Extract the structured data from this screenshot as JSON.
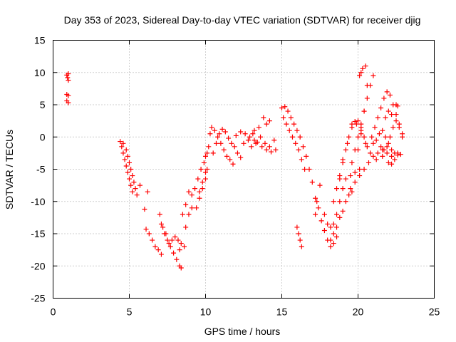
{
  "chart_data": {
    "type": "scatter",
    "title": "Day 353 of 2023, Sidereal Day-to-day VTEC variation (SDTVAR) for receiver djig",
    "xlabel": "GPS time / hours",
    "ylabel": "SDTVAR / TECUs",
    "xlim": [
      0,
      25
    ],
    "ylim": [
      -25,
      15
    ],
    "xticks": [
      "0",
      "5",
      "10",
      "15",
      "20",
      "25"
    ],
    "yticks": [
      "15",
      "10",
      "5",
      "0",
      "-5",
      "-10",
      "-15",
      "-20",
      "-25"
    ],
    "grid": true,
    "marker": "plus",
    "color": "#ff0000",
    "series": [
      {
        "values": [
          [
            0.9,
            9.6
          ],
          [
            0.95,
            9.2
          ],
          [
            1.0,
            8.8
          ],
          [
            1.0,
            9.8
          ],
          [
            0.9,
            6.6
          ],
          [
            1.0,
            6.4
          ],
          [
            0.9,
            5.6
          ],
          [
            1.0,
            5.3
          ],
          [
            4.4,
            -0.7
          ],
          [
            4.5,
            -1.5
          ],
          [
            4.6,
            -2.5
          ],
          [
            4.7,
            -3.5
          ],
          [
            4.8,
            -4.5
          ],
          [
            4.9,
            -5.5
          ],
          [
            5.0,
            -6.5
          ],
          [
            5.1,
            -7.5
          ],
          [
            5.2,
            -8.5
          ],
          [
            4.6,
            -1.0
          ],
          [
            4.8,
            -2.0
          ],
          [
            4.9,
            -3.0
          ],
          [
            5.0,
            -4.0
          ],
          [
            5.1,
            -5.0
          ],
          [
            5.2,
            -6.0
          ],
          [
            5.3,
            -7.0
          ],
          [
            5.4,
            -8.0
          ],
          [
            5.5,
            -9.0
          ],
          [
            5.7,
            -7.5
          ],
          [
            6.0,
            -11.2
          ],
          [
            6.2,
            -8.5
          ],
          [
            6.1,
            -14.3
          ],
          [
            6.3,
            -15.0
          ],
          [
            6.5,
            -16.0
          ],
          [
            6.7,
            -17.0
          ],
          [
            6.9,
            -17.5
          ],
          [
            7.1,
            -18.2
          ],
          [
            7.0,
            -12.0
          ],
          [
            7.1,
            -13.5
          ],
          [
            7.3,
            -15.0
          ],
          [
            7.5,
            -16.0
          ],
          [
            7.7,
            -17.0
          ],
          [
            7.9,
            -18.0
          ],
          [
            8.1,
            -19.0
          ],
          [
            8.3,
            -20.0
          ],
          [
            8.4,
            -20.3
          ],
          [
            7.2,
            -14.0
          ],
          [
            7.4,
            -15.0
          ],
          [
            7.6,
            -16.5
          ],
          [
            7.8,
            -16.0
          ],
          [
            8.0,
            -15.5
          ],
          [
            8.2,
            -16.0
          ],
          [
            8.4,
            -16.5
          ],
          [
            8.6,
            -17.0
          ],
          [
            8.3,
            -17.5
          ],
          [
            8.5,
            -12.0
          ],
          [
            8.7,
            -10.5
          ],
          [
            8.9,
            -8.5
          ],
          [
            9.1,
            -9.0
          ],
          [
            8.7,
            -14.0
          ],
          [
            8.9,
            -12.0
          ],
          [
            9.1,
            -11.0
          ],
          [
            9.3,
            -8.0
          ],
          [
            9.5,
            -6.5
          ],
          [
            9.7,
            -5.0
          ],
          [
            9.9,
            -4.0
          ],
          [
            10.0,
            -3.0
          ],
          [
            10.1,
            -2.5
          ],
          [
            9.4,
            -11.0
          ],
          [
            9.6,
            -9.5
          ],
          [
            9.8,
            -8.0
          ],
          [
            10.0,
            -6.5
          ],
          [
            10.1,
            -5.0
          ],
          [
            9.6,
            -8.5
          ],
          [
            9.8,
            -7.0
          ],
          [
            10.0,
            -5.5
          ],
          [
            10.2,
            -1.5
          ],
          [
            10.3,
            0.5
          ],
          [
            10.4,
            1.5
          ],
          [
            10.6,
            1.0
          ],
          [
            10.8,
            0.0
          ],
          [
            11.0,
            -1.0
          ],
          [
            11.2,
            -2.0
          ],
          [
            11.4,
            -3.0
          ],
          [
            11.6,
            -3.5
          ],
          [
            11.8,
            -4.2
          ],
          [
            10.5,
            -2.5
          ],
          [
            10.7,
            -1.0
          ],
          [
            10.9,
            0.5
          ],
          [
            11.1,
            1.2
          ],
          [
            11.3,
            0.8
          ],
          [
            11.5,
            -0.2
          ],
          [
            11.7,
            -1.0
          ],
          [
            11.9,
            -1.5
          ],
          [
            12.1,
            -2.5
          ],
          [
            12.3,
            -3.2
          ],
          [
            12.0,
            0.2
          ],
          [
            12.3,
            0.8
          ],
          [
            12.6,
            0.5
          ],
          [
            12.9,
            0.0
          ],
          [
            13.2,
            -0.5
          ],
          [
            13.5,
            1.5
          ],
          [
            13.8,
            3.0
          ],
          [
            14.0,
            2.0
          ],
          [
            12.5,
            -1.0
          ],
          [
            12.8,
            -0.5
          ],
          [
            13.1,
            0.5
          ],
          [
            13.4,
            -0.8
          ],
          [
            13.7,
            -1.5
          ],
          [
            14.0,
            -2.0
          ],
          [
            14.3,
            -2.3
          ],
          [
            14.6,
            -2.0
          ],
          [
            13.0,
            -1.5
          ],
          [
            13.3,
            -1.0
          ],
          [
            13.6,
            0.0
          ],
          [
            13.9,
            -1.0
          ],
          [
            14.2,
            -1.5
          ],
          [
            14.5,
            -0.5
          ],
          [
            14.2,
            2.5
          ],
          [
            13.2,
            1.0
          ],
          [
            15.0,
            4.5
          ],
          [
            15.2,
            4.7
          ],
          [
            15.4,
            4.0
          ],
          [
            15.6,
            3.0
          ],
          [
            15.8,
            2.0
          ],
          [
            16.0,
            1.0
          ],
          [
            16.2,
            0.0
          ],
          [
            16.4,
            -1.5
          ],
          [
            16.6,
            -3.0
          ],
          [
            16.8,
            -5.0
          ],
          [
            17.0,
            -7.0
          ],
          [
            17.2,
            -9.5
          ],
          [
            17.3,
            -10.0
          ],
          [
            15.1,
            3.0
          ],
          [
            15.3,
            2.0
          ],
          [
            15.5,
            1.0
          ],
          [
            15.7,
            0.0
          ],
          [
            15.9,
            -1.0
          ],
          [
            16.1,
            -2.0
          ],
          [
            16.3,
            -3.5
          ],
          [
            16.5,
            -5.0
          ],
          [
            16.0,
            -14.0
          ],
          [
            16.1,
            -15.0
          ],
          [
            16.2,
            -16.0
          ],
          [
            16.3,
            -17.0
          ],
          [
            17.5,
            -7.5
          ],
          [
            17.2,
            -12.0
          ],
          [
            17.4,
            -11.0
          ],
          [
            17.6,
            -13.0
          ],
          [
            17.8,
            -14.5
          ],
          [
            18.0,
            -16.0
          ],
          [
            18.2,
            -17.0
          ],
          [
            18.4,
            -16.5
          ],
          [
            18.6,
            -15.5
          ],
          [
            17.8,
            -12.0
          ],
          [
            18.0,
            -13.5
          ],
          [
            18.2,
            -14.0
          ],
          [
            18.4,
            -13.5
          ],
          [
            18.6,
            -12.0
          ],
          [
            18.8,
            -10.0
          ],
          [
            19.0,
            -8.0
          ],
          [
            19.2,
            -6.5
          ],
          [
            19.5,
            -6.0
          ],
          [
            19.8,
            -5.5
          ],
          [
            20.1,
            -5.0
          ],
          [
            18.2,
            -16.0
          ],
          [
            18.4,
            -15.0
          ],
          [
            18.6,
            -14.0
          ],
          [
            18.8,
            -12.5
          ],
          [
            19.0,
            -11.5
          ],
          [
            19.2,
            -10.0
          ],
          [
            19.4,
            -9.0
          ],
          [
            19.6,
            -8.5
          ],
          [
            18.4,
            -10.0
          ],
          [
            18.6,
            -8.0
          ],
          [
            18.8,
            -6.0
          ],
          [
            19.0,
            -4.0
          ],
          [
            19.2,
            -2.0
          ],
          [
            19.4,
            0.0
          ],
          [
            19.6,
            1.5
          ],
          [
            19.8,
            2.4
          ],
          [
            20.0,
            2.5
          ],
          [
            20.2,
            1.5
          ],
          [
            20.4,
            0.0
          ],
          [
            20.6,
            -1.5
          ],
          [
            18.8,
            -6.5
          ],
          [
            19.0,
            -3.5
          ],
          [
            19.3,
            -1.0
          ],
          [
            19.6,
            2.0
          ],
          [
            19.9,
            2.0
          ],
          [
            20.2,
            0.5
          ],
          [
            20.5,
            -1.0
          ],
          [
            20.8,
            -2.5
          ],
          [
            19.5,
            -8.0
          ],
          [
            19.8,
            -7.0
          ],
          [
            20.1,
            -6.0
          ],
          [
            20.4,
            -5.0
          ],
          [
            20.7,
            -4.0
          ],
          [
            21.0,
            -3.0
          ],
          [
            21.3,
            -2.5
          ],
          [
            21.6,
            -2.0
          ],
          [
            21.9,
            -2.5
          ],
          [
            22.2,
            -3.0
          ],
          [
            19.6,
            -4.0
          ],
          [
            19.8,
            -2.0
          ],
          [
            20.0,
            0.0
          ],
          [
            20.2,
            2.0
          ],
          [
            20.4,
            4.0
          ],
          [
            20.6,
            6.0
          ],
          [
            20.8,
            8.0
          ],
          [
            21.0,
            9.5
          ],
          [
            20.0,
            -2.0
          ],
          [
            20.2,
            1.0
          ],
          [
            20.4,
            4.0
          ],
          [
            20.6,
            8.0
          ],
          [
            20.2,
            10.0
          ],
          [
            20.3,
            10.6
          ],
          [
            20.5,
            11.0
          ],
          [
            20.1,
            9.5
          ],
          [
            20.9,
            0.0
          ],
          [
            21.1,
            1.5
          ],
          [
            21.3,
            3.0
          ],
          [
            21.5,
            4.5
          ],
          [
            21.7,
            6.0
          ],
          [
            21.9,
            7.0
          ],
          [
            22.1,
            6.5
          ],
          [
            22.3,
            5.0
          ],
          [
            22.5,
            3.5
          ],
          [
            22.7,
            2.0
          ],
          [
            22.9,
            0.0
          ],
          [
            21.0,
            -1.0
          ],
          [
            21.2,
            -0.5
          ],
          [
            21.4,
            0.5
          ],
          [
            21.6,
            1.0
          ],
          [
            21.8,
            0.0
          ],
          [
            22.0,
            -1.0
          ],
          [
            22.2,
            -2.0
          ],
          [
            22.4,
            -2.5
          ],
          [
            22.6,
            -2.8
          ],
          [
            22.8,
            -2.7
          ],
          [
            21.5,
            -1.5
          ],
          [
            21.7,
            -2.0
          ],
          [
            21.9,
            -1.5
          ],
          [
            22.1,
            0.0
          ],
          [
            22.3,
            1.5
          ],
          [
            22.5,
            2.5
          ],
          [
            22.7,
            1.5
          ],
          [
            22.9,
            0.5
          ],
          [
            21.2,
            -3.5
          ],
          [
            21.6,
            -3.0
          ],
          [
            22.0,
            -4.0
          ],
          [
            22.2,
            -4.2
          ],
          [
            22.4,
            -3.5
          ],
          [
            22.6,
            -2.5
          ],
          [
            21.8,
            3.0
          ],
          [
            22.0,
            4.0
          ],
          [
            22.2,
            3.5
          ],
          [
            22.5,
            5.0
          ],
          [
            22.6,
            4.8
          ]
        ]
      }
    ]
  }
}
